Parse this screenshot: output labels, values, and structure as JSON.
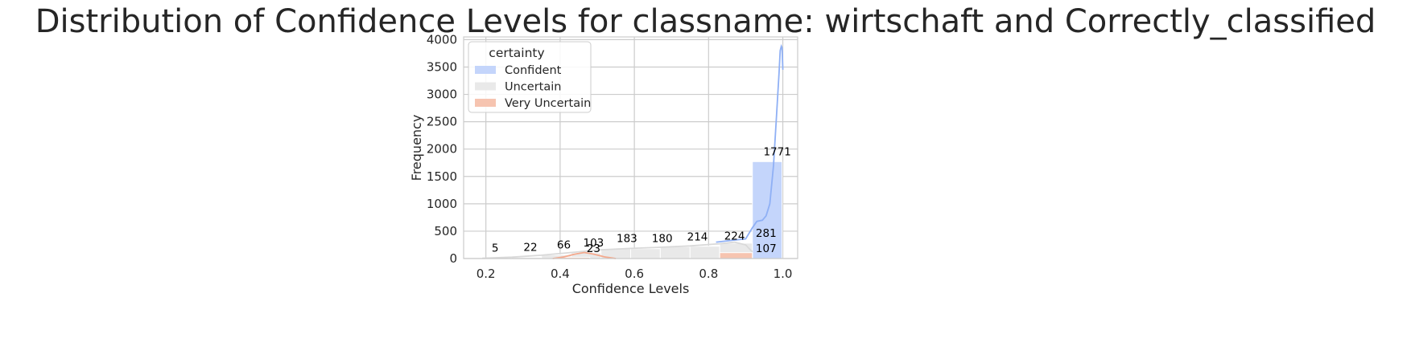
{
  "chart_data": {
    "type": "histogram",
    "title": "Distribution of Confidence Levels for classname: wirtschaft and Correctly_classified",
    "xlabel": "Confidence Levels",
    "ylabel": "Frequency",
    "xlim": [
      0.14,
      1.04
    ],
    "ylim": [
      0,
      4050
    ],
    "x_ticks": [
      "0.2",
      "0.4",
      "0.6",
      "0.8",
      "1.0"
    ],
    "x_tick_values": [
      0.2,
      0.4,
      0.6,
      0.8,
      1.0
    ],
    "y_ticks": [
      "0",
      "500",
      "1000",
      "1500",
      "2000",
      "2500",
      "3000",
      "3500",
      "4000"
    ],
    "y_tick_values": [
      0,
      500,
      1000,
      1500,
      2000,
      2500,
      3000,
      3500,
      4000
    ],
    "grid": true,
    "legend": {
      "title": "certainty",
      "position": "top-left",
      "entries": [
        "Confident",
        "Uncertain",
        "Very Uncertain"
      ]
    },
    "series": [
      {
        "name": "Confident",
        "color": "#c4d5fb",
        "kde_color": "#8fb0f5",
        "bins": [
          {
            "x0": 0.918,
            "x1": 0.998,
            "value": 1771
          }
        ],
        "kde": [
          [
            0.82,
            300
          ],
          [
            0.86,
            330
          ],
          [
            0.9,
            360
          ],
          [
            0.918,
            560
          ],
          [
            0.93,
            680
          ],
          [
            0.945,
            700
          ],
          [
            0.955,
            780
          ],
          [
            0.965,
            1000
          ],
          [
            0.975,
            1700
          ],
          [
            0.983,
            2600
          ],
          [
            0.99,
            3400
          ],
          [
            0.993,
            3800
          ],
          [
            0.996,
            3880
          ],
          [
            0.998,
            3850
          ],
          [
            1.0,
            3450
          ]
        ]
      },
      {
        "name": "Uncertain",
        "color": "#e9e9e9",
        "kde_color": "#d9d9d9",
        "bins": [
          {
            "x0": 0.19,
            "x1": 0.27,
            "value": 5
          },
          {
            "x0": 0.27,
            "x1": 0.35,
            "value": 22
          },
          {
            "x0": 0.35,
            "x1": 0.43,
            "value": 66
          },
          {
            "x0": 0.43,
            "x1": 0.51,
            "value": 103
          },
          {
            "x0": 0.51,
            "x1": 0.59,
            "value": 183
          },
          {
            "x0": 0.59,
            "x1": 0.67,
            "value": 180
          },
          {
            "x0": 0.67,
            "x1": 0.75,
            "value": 214
          },
          {
            "x0": 0.75,
            "x1": 0.83,
            "value": 224
          },
          {
            "x0": 0.83,
            "x1": 0.918,
            "value": 281
          }
        ],
        "kde": [
          [
            0.19,
            5
          ],
          [
            0.27,
            25
          ],
          [
            0.35,
            60
          ],
          [
            0.43,
            110
          ],
          [
            0.51,
            160
          ],
          [
            0.59,
            185
          ],
          [
            0.67,
            205
          ],
          [
            0.75,
            230
          ],
          [
            0.83,
            270
          ],
          [
            0.87,
            300
          ],
          [
            0.9,
            250
          ],
          [
            0.918,
            120
          ]
        ]
      },
      {
        "name": "Very Uncertain",
        "color": "#f6c4b0",
        "kde_color": "#f4a88c",
        "bins": [
          {
            "x0": 0.4,
            "x1": 0.48,
            "value": 23
          },
          {
            "x0": 0.83,
            "x1": 0.918,
            "value": 107
          }
        ],
        "kde": [
          [
            0.38,
            0
          ],
          [
            0.41,
            30
          ],
          [
            0.44,
            80
          ],
          [
            0.465,
            110
          ],
          [
            0.49,
            80
          ],
          [
            0.52,
            30
          ],
          [
            0.55,
            0
          ]
        ]
      }
    ],
    "labels": [
      {
        "x": 0.225,
        "value": "5"
      },
      {
        "x": 0.32,
        "value": "22"
      },
      {
        "x": 0.41,
        "value": "66"
      },
      {
        "x": 0.49,
        "value": "103"
      },
      {
        "x": 0.49,
        "value": "23",
        "anchor": 0
      },
      {
        "x": 0.58,
        "value": "183"
      },
      {
        "x": 0.675,
        "value": "180"
      },
      {
        "x": 0.77,
        "value": "214"
      },
      {
        "x": 0.87,
        "value": "224"
      },
      {
        "x": 0.955,
        "value": "281"
      },
      {
        "x": 0.955,
        "value": "107",
        "anchor": 0
      },
      {
        "x": 0.985,
        "value": "1771"
      }
    ]
  }
}
